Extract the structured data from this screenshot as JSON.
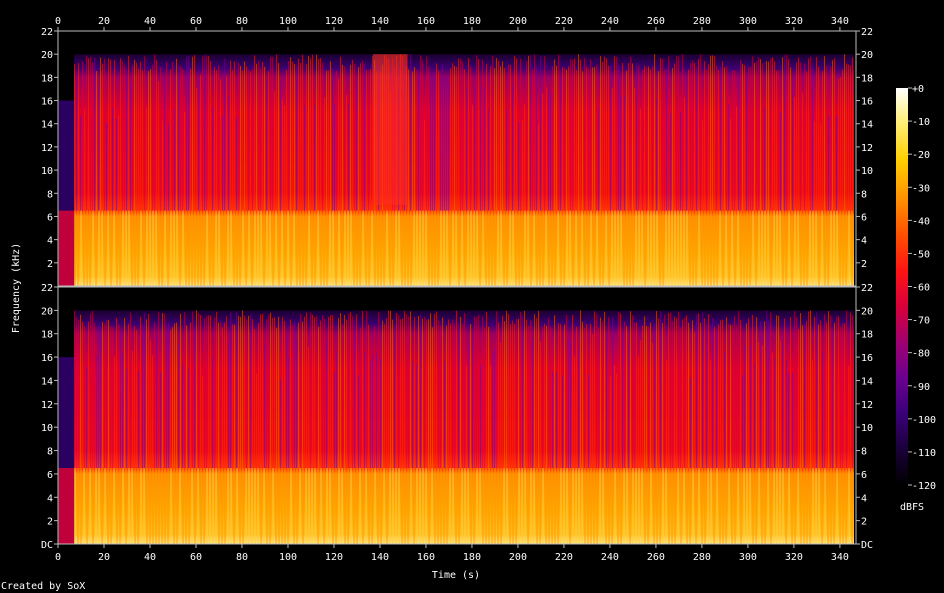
{
  "chart_data": {
    "type": "heatmap",
    "title": "",
    "xlabel": "Time (s)",
    "ylabel": "Frequency (kHz)",
    "xlim": [
      0,
      347
    ],
    "x_ticks": [
      0,
      20,
      40,
      60,
      80,
      100,
      120,
      140,
      160,
      180,
      200,
      220,
      240,
      260,
      280,
      300,
      320,
      340
    ],
    "channels": [
      {
        "ylim": [
          0,
          22
        ],
        "y_tick_labels": [
          "22",
          "20",
          "18",
          "16",
          "14",
          "12",
          "10",
          "8",
          "6",
          "4",
          "2"
        ],
        "bottom_label": ""
      },
      {
        "ylim": [
          0,
          22
        ],
        "y_tick_labels": [
          "22",
          "20",
          "18",
          "16",
          "14",
          "12",
          "10",
          "8",
          "6",
          "4",
          "2",
          "DC"
        ],
        "bottom_label": "DC"
      }
    ],
    "colorbar": {
      "label": "dBFS",
      "range": [
        -120,
        0
      ],
      "tick_labels": [
        "+0",
        "-10",
        "-20",
        "-30",
        "-40",
        "-50",
        "-60",
        "-70",
        "-80",
        "-90",
        "-100",
        "-110",
        "-120"
      ],
      "colors": [
        "#000000",
        "#1a0038",
        "#3a0078",
        "#6a0090",
        "#a00070",
        "#d8003a",
        "#ff1414",
        "#ff5000",
        "#ff9000",
        "#ffd000",
        "#fff080",
        "#ffffff"
      ]
    },
    "content_cutoff_khz": 20,
    "strong_band_khz": 6.5,
    "credit": "Created by SoX"
  }
}
